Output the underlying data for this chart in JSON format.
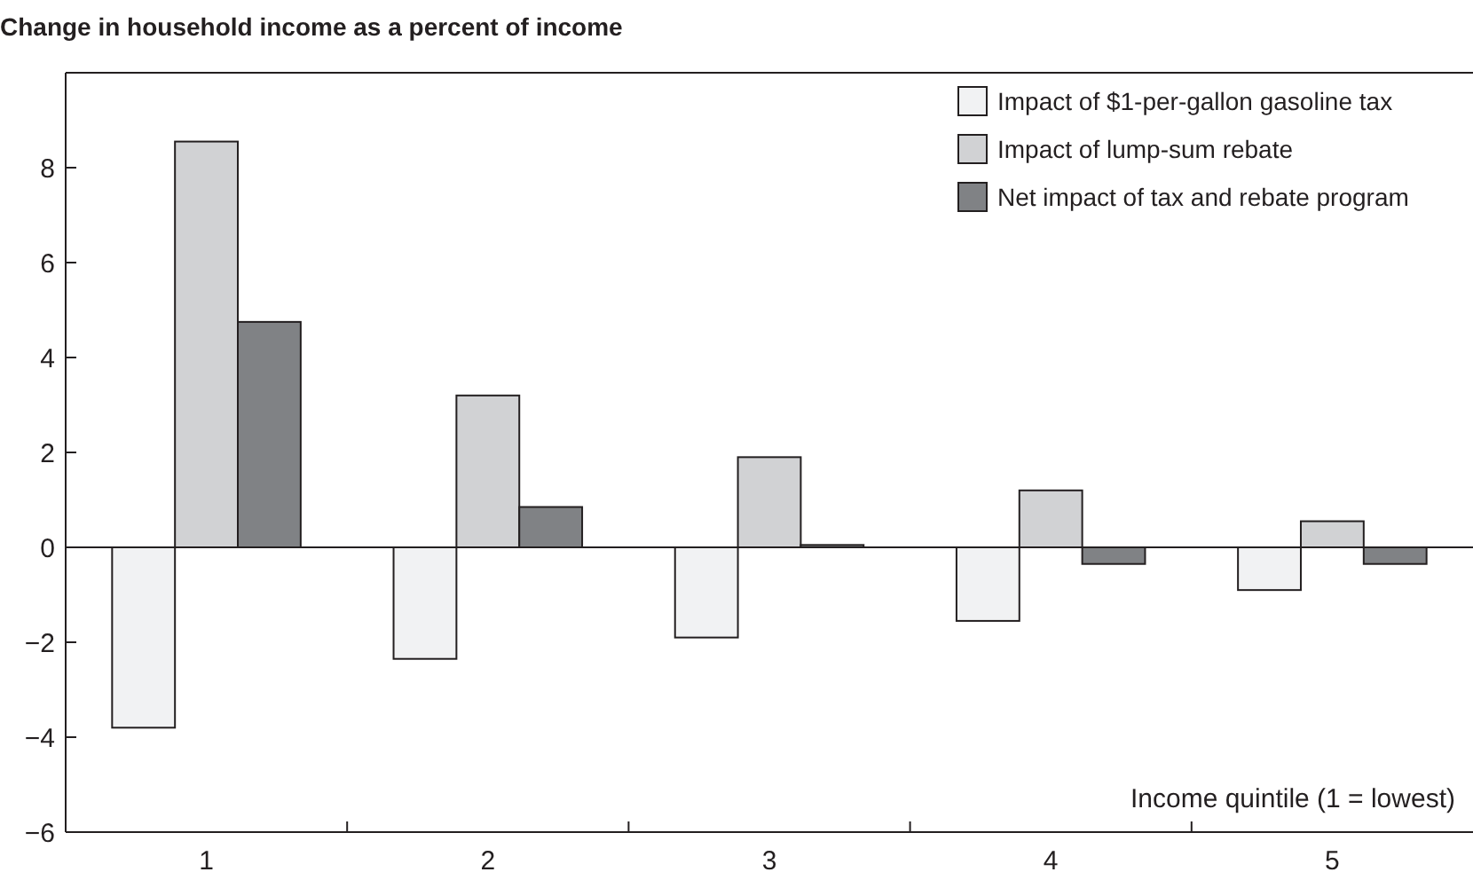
{
  "chart_data": {
    "type": "bar",
    "title": "Change in household income as a percent of income",
    "xlabel": "Income quintile (1 = lowest)",
    "categories": [
      "1",
      "2",
      "3",
      "4",
      "5"
    ],
    "series": [
      {
        "name": "Impact of $1-per-gallon gasoline tax",
        "color": "#f1f2f3",
        "values": [
          -3.8,
          -2.35,
          -1.9,
          -1.55,
          -0.9
        ]
      },
      {
        "name": "Impact of lump-sum rebate",
        "color": "#d1d2d4",
        "values": [
          8.55,
          3.2,
          1.9,
          1.2,
          0.55
        ]
      },
      {
        "name": "Net impact of tax and rebate program",
        "color": "#808285",
        "values": [
          4.75,
          0.85,
          0.05,
          -0.35,
          -0.35
        ]
      }
    ],
    "ylim": [
      -6,
      10
    ],
    "yticks": [
      -6,
      -4,
      -2,
      0,
      2,
      4,
      6,
      8
    ],
    "grid": false,
    "ref_lines": [
      {
        "axis": "y",
        "value": 0
      }
    ],
    "legend": "top right"
  }
}
